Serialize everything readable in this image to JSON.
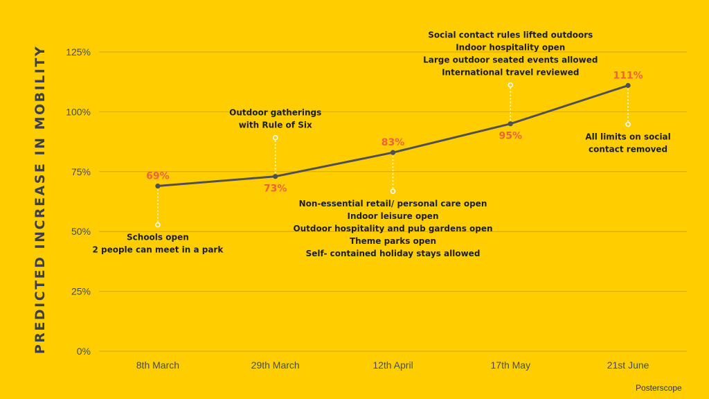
{
  "chart_data": {
    "type": "line",
    "title": "",
    "xlabel": "",
    "ylabel": "PREDICTED INCREASE IN MOBILITY",
    "categories": [
      "8th March",
      "29th March",
      "12th April",
      "17th May",
      "21st June"
    ],
    "series": [
      {
        "values": [
          69,
          73,
          83,
          95,
          111
        ]
      }
    ],
    "data_labels": [
      "69%",
      "73%",
      "83%",
      "95%",
      "111%"
    ],
    "y_ticks": [
      "0%",
      "25%",
      "50%",
      "75%",
      "100%",
      "125%"
    ],
    "ylim": [
      0,
      125
    ],
    "grid": true,
    "legend": "none",
    "line_color": "#505050",
    "label_color": "#F0623C",
    "background_color": "#FFCD00",
    "annotations": [
      {
        "category": "8th March",
        "side": "below",
        "lines": [
          "Schools open",
          "2 people can meet in a park"
        ]
      },
      {
        "category": "29th March",
        "side": "above",
        "lines": [
          "Outdoor gatherings",
          "with Rule of Six"
        ]
      },
      {
        "category": "12th April",
        "side": "below",
        "lines": [
          "Non-essential retail/ personal care open",
          "Indoor leisure open",
          "Outdoor hospitality and pub gardens open",
          "Theme parks open",
          "Self- contained holiday stays allowed"
        ]
      },
      {
        "category": "17th May",
        "side": "above",
        "lines": [
          "Social contact rules lifted outdoors",
          "Indoor hospitality open",
          "Large outdoor seated events allowed",
          "International travel reviewed"
        ]
      },
      {
        "category": "21st June",
        "side": "below",
        "lines": [
          "All limits on social",
          "contact removed"
        ]
      }
    ]
  },
  "brand": {
    "name": "Posterscope"
  }
}
